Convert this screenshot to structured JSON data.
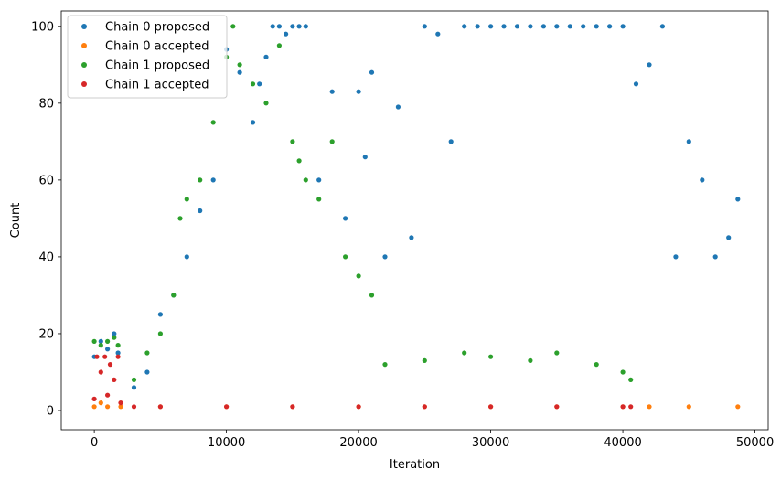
{
  "chart_data": {
    "type": "scatter",
    "xlabel": "Iteration",
    "ylabel": "Count",
    "xlim": [
      -2500,
      51000
    ],
    "ylim": [
      -5,
      104
    ],
    "xticks": [
      0,
      10000,
      20000,
      30000,
      40000,
      50000
    ],
    "xtick_labels": [
      "0",
      "10000",
      "20000",
      "30000",
      "40000",
      "50000"
    ],
    "yticks": [
      0,
      20,
      40,
      60,
      80,
      100
    ],
    "ytick_labels": [
      "0",
      "20",
      "40",
      "60",
      "80",
      "100"
    ],
    "legend_position": "top-left",
    "grid": false,
    "series": [
      {
        "name": "Chain 0 proposed",
        "color": "#1f77b4",
        "points": [
          [
            0,
            14
          ],
          [
            500,
            18
          ],
          [
            1000,
            16
          ],
          [
            1500,
            20
          ],
          [
            1800,
            15
          ],
          [
            3000,
            6
          ],
          [
            4000,
            10
          ],
          [
            5000,
            25
          ],
          [
            6000,
            30
          ],
          [
            7000,
            40
          ],
          [
            8000,
            52
          ],
          [
            9000,
            60
          ],
          [
            10000,
            94
          ],
          [
            11000,
            88
          ],
          [
            12000,
            75
          ],
          [
            12500,
            85
          ],
          [
            13000,
            92
          ],
          [
            13500,
            100
          ],
          [
            14000,
            100
          ],
          [
            14500,
            98
          ],
          [
            15000,
            100
          ],
          [
            15500,
            100
          ],
          [
            16000,
            100
          ],
          [
            17000,
            60
          ],
          [
            18000,
            83
          ],
          [
            19000,
            50
          ],
          [
            20000,
            83
          ],
          [
            20500,
            66
          ],
          [
            21000,
            88
          ],
          [
            22000,
            40
          ],
          [
            23000,
            79
          ],
          [
            24000,
            45
          ],
          [
            25000,
            100
          ],
          [
            26000,
            98
          ],
          [
            27000,
            70
          ],
          [
            28000,
            100
          ],
          [
            29000,
            100
          ],
          [
            30000,
            100
          ],
          [
            31000,
            100
          ],
          [
            32000,
            100
          ],
          [
            33000,
            100
          ],
          [
            34000,
            100
          ],
          [
            35000,
            100
          ],
          [
            36000,
            100
          ],
          [
            37000,
            100
          ],
          [
            38000,
            100
          ],
          [
            39000,
            100
          ],
          [
            40000,
            100
          ],
          [
            41000,
            85
          ],
          [
            42000,
            90
          ],
          [
            43000,
            100
          ],
          [
            44000,
            40
          ],
          [
            45000,
            70
          ],
          [
            46000,
            60
          ],
          [
            47000,
            40
          ],
          [
            48000,
            45
          ],
          [
            48700,
            55
          ]
        ]
      },
      {
        "name": "Chain 0 accepted",
        "color": "#ff7f0e",
        "points": [
          [
            0,
            1
          ],
          [
            500,
            2
          ],
          [
            1000,
            1
          ],
          [
            2000,
            1
          ],
          [
            5000,
            1
          ],
          [
            10000,
            1
          ],
          [
            15000,
            1
          ],
          [
            20000,
            1
          ],
          [
            25000,
            1
          ],
          [
            30000,
            1
          ],
          [
            35000,
            1
          ],
          [
            40000,
            1
          ],
          [
            42000,
            1
          ],
          [
            45000,
            1
          ],
          [
            48700,
            1
          ]
        ]
      },
      {
        "name": "Chain 1 proposed",
        "color": "#2ca02c",
        "points": [
          [
            0,
            18
          ],
          [
            500,
            17
          ],
          [
            1000,
            18
          ],
          [
            1500,
            19
          ],
          [
            1800,
            17
          ],
          [
            3000,
            8
          ],
          [
            4000,
            15
          ],
          [
            5000,
            20
          ],
          [
            6000,
            30
          ],
          [
            6500,
            50
          ],
          [
            7000,
            55
          ],
          [
            8000,
            60
          ],
          [
            9000,
            75
          ],
          [
            10000,
            92
          ],
          [
            10500,
            100
          ],
          [
            11000,
            90
          ],
          [
            12000,
            85
          ],
          [
            13000,
            80
          ],
          [
            14000,
            95
          ],
          [
            15000,
            70
          ],
          [
            15500,
            65
          ],
          [
            16000,
            60
          ],
          [
            17000,
            55
          ],
          [
            18000,
            70
          ],
          [
            19000,
            40
          ],
          [
            20000,
            35
          ],
          [
            21000,
            30
          ],
          [
            22000,
            12
          ],
          [
            25000,
            13
          ],
          [
            28000,
            15
          ],
          [
            30000,
            14
          ],
          [
            33000,
            13
          ],
          [
            35000,
            15
          ],
          [
            38000,
            12
          ],
          [
            40000,
            10
          ],
          [
            40600,
            8
          ]
        ]
      },
      {
        "name": "Chain 1 accepted",
        "color": "#d62728",
        "points": [
          [
            0,
            3
          ],
          [
            200,
            14
          ],
          [
            500,
            10
          ],
          [
            800,
            14
          ],
          [
            1000,
            4
          ],
          [
            1200,
            12
          ],
          [
            1500,
            8
          ],
          [
            1800,
            14
          ],
          [
            2000,
            2
          ],
          [
            3000,
            1
          ],
          [
            5000,
            1
          ],
          [
            10000,
            1
          ],
          [
            15000,
            1
          ],
          [
            20000,
            1
          ],
          [
            25000,
            1
          ],
          [
            30000,
            1
          ],
          [
            35000,
            1
          ],
          [
            40000,
            1
          ],
          [
            40600,
            1
          ]
        ]
      }
    ]
  }
}
